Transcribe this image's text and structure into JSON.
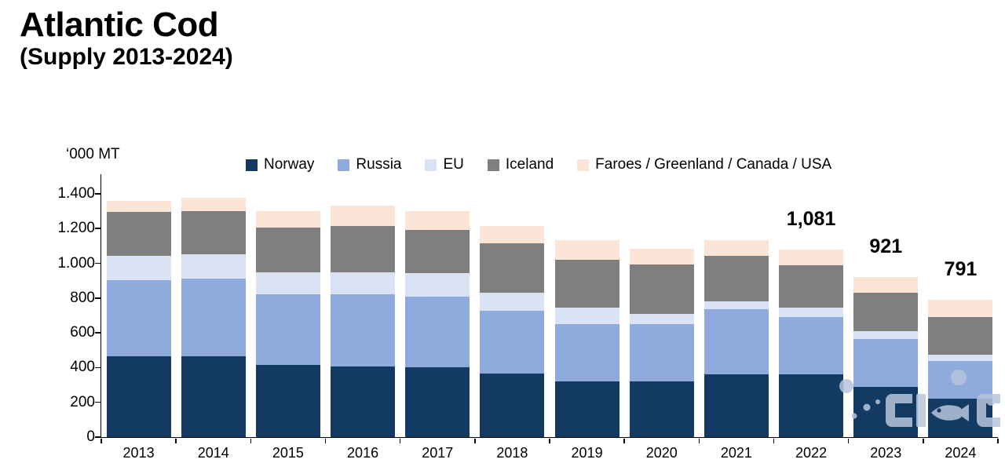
{
  "header": {
    "title": "Atlantic Cod",
    "subtitle": "(Supply 2013-2024)"
  },
  "chart_data": {
    "type": "bar",
    "stacked": true,
    "title": "Atlantic Cod (Supply 2013-2024)",
    "unit_label": "‘000 MT",
    "xlabel": "",
    "ylabel": "'000 MT",
    "grid": false,
    "legend_position": "top",
    "categories": [
      "2013",
      "2014",
      "2015",
      "2016",
      "2017",
      "2018",
      "2019",
      "2020",
      "2021",
      "2022",
      "2023",
      "2024"
    ],
    "series": [
      {
        "name": "Norway",
        "color": "#123A63",
        "values": [
          465,
          465,
          415,
          405,
          400,
          365,
          320,
          320,
          360,
          360,
          290,
          220
        ]
      },
      {
        "name": "Russia",
        "color": "#8FAADC",
        "values": [
          440,
          445,
          405,
          415,
          410,
          360,
          330,
          330,
          375,
          330,
          275,
          218
        ]
      },
      {
        "name": "EU",
        "color": "#DAE3F3",
        "values": [
          140,
          140,
          130,
          130,
          135,
          105,
          95,
          60,
          45,
          55,
          45,
          37
        ]
      },
      {
        "name": "Iceland",
        "color": "#7F7F7F",
        "values": [
          250,
          250,
          255,
          265,
          245,
          285,
          275,
          285,
          265,
          245,
          220,
          217
        ]
      },
      {
        "name": "Faroes / Greenland / Canada / USA",
        "color": "#FBE5D6",
        "values": [
          65,
          75,
          95,
          115,
          110,
          100,
          115,
          90,
          90,
          91,
          91,
          99
        ]
      }
    ],
    "totals": [
      1360,
      1375,
      1300,
      1330,
      1300,
      1215,
      1135,
      1085,
      1135,
      1081,
      921,
      791
    ],
    "totals_labels": [
      {
        "category": "2022",
        "label": "1,081"
      },
      {
        "category": "2023",
        "label": "921"
      },
      {
        "category": "2024",
        "label": "791"
      }
    ],
    "y_axis": {
      "tick_labels": [
        "0",
        "200",
        "400",
        "600",
        "800",
        "1.000",
        "1.200",
        "1.400"
      ],
      "tick_values": [
        0,
        200,
        400,
        600,
        800,
        1000,
        1200,
        1400
      ],
      "min": 0,
      "max": 1400
    }
  },
  "watermark": {
    "name": "fish-logo"
  }
}
